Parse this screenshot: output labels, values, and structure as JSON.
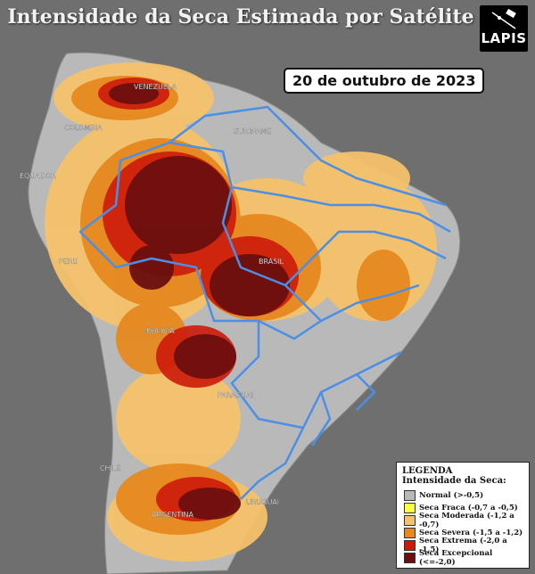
{
  "title": "Intensidade da Seca Estimada por Satélite",
  "logo": {
    "text": "LAPIS"
  },
  "date": "20 de outubro de 2023",
  "country_labels": [
    "VENEZUELA",
    "COLOMBIA",
    "SURINAME",
    "EQUADOR",
    "PERU",
    "BRASIL",
    "BOLIVIA",
    "PARAGUAI",
    "CHILE",
    "ARGENTINA",
    "URUGUAI"
  ],
  "legend": {
    "title": "LEGENDA",
    "subtitle": "Intensidade da Seca:",
    "items": [
      {
        "label": "Normal (>-0,5)",
        "color": "#b9b9b9"
      },
      {
        "label": "Seca Fraca (-0,7 a -0,5)",
        "color": "#ffff3c"
      },
      {
        "label": "Seca Moderada (-1,2 a -0,7)",
        "color": "#f5c26b"
      },
      {
        "label": "Seca Severa (-1,5 a -1,2)",
        "color": "#e6891f"
      },
      {
        "label": "Seca Extrema (-2,0 a -1,5)",
        "color": "#cc1a0a"
      },
      {
        "label": "Seca Excepcional (<=-2,0)",
        "color": "#6b0f0f"
      }
    ]
  },
  "colors": {
    "ocean": "#6f6f6f",
    "land_normal": "#b9b9b9",
    "border_states": "#4b8fe6"
  }
}
